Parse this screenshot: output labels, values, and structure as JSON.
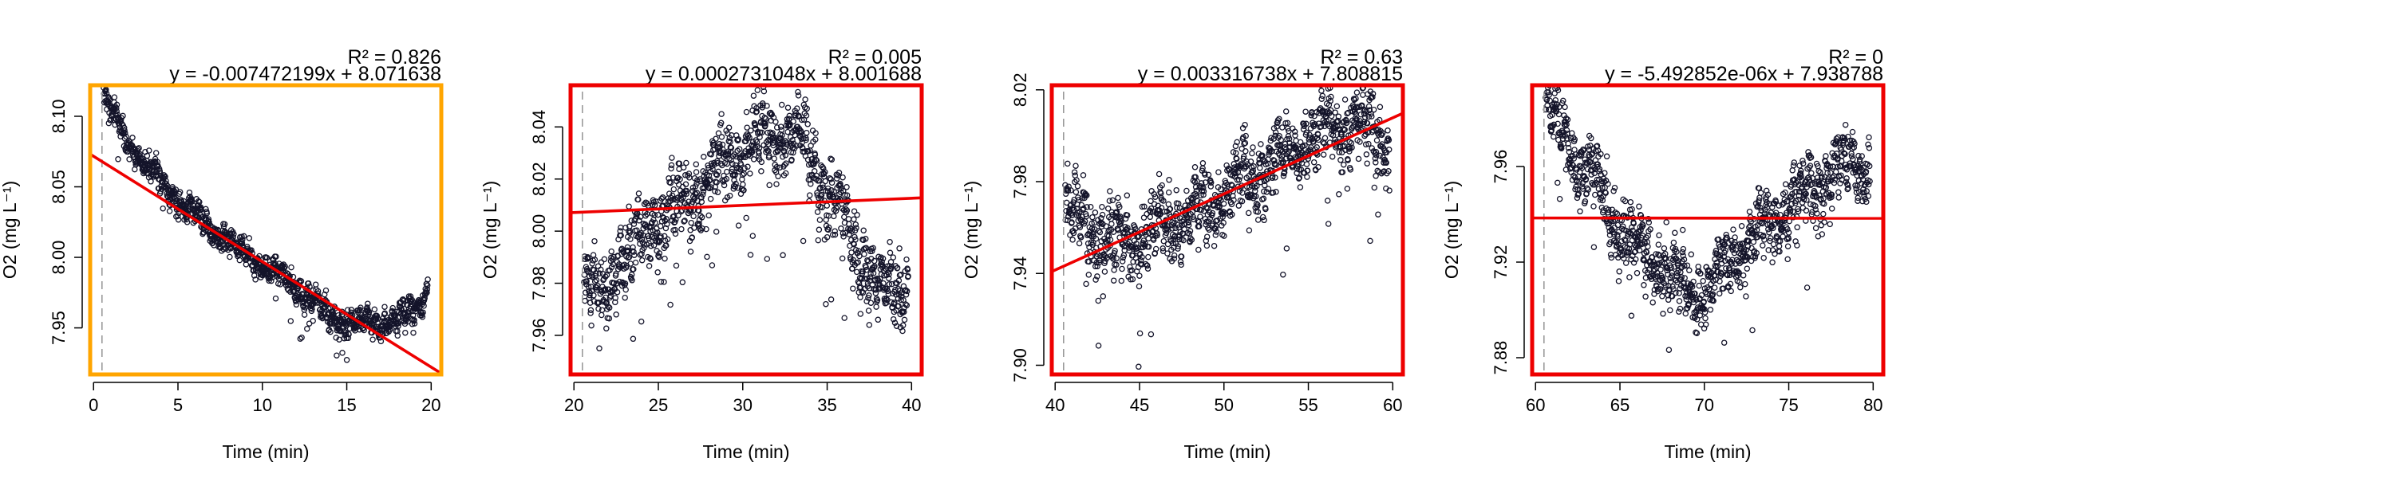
{
  "chart_data": [
    {
      "type": "scatter",
      "xlabel": "Time (min)",
      "ylabel": "O2 (mg L⁻¹)",
      "r2_label": "R² = 0.826",
      "equation": "y = -0.007472199x + 8.071638",
      "frame_color": "#FFA500",
      "xlim": [
        -0.2,
        20.6
      ],
      "ylim": [
        7.917,
        8.122
      ],
      "xticks": [
        0,
        5,
        10,
        15,
        20
      ],
      "xtick_labels": [
        "0",
        "5",
        "10",
        "15",
        "20"
      ],
      "yticks": [
        7.95,
        8.0,
        8.05,
        8.1
      ],
      "ytick_labels": [
        "7.95",
        "8.00",
        "8.05",
        "8.10"
      ],
      "vline_x": 0.5,
      "fit": {
        "slope": -0.007472199,
        "intercept": 8.071638
      },
      "trend": [
        [
          0.6,
          8.115
        ],
        [
          1.0,
          8.105
        ],
        [
          2.0,
          8.082
        ],
        [
          3.0,
          8.067
        ],
        [
          5.0,
          8.04
        ],
        [
          7.0,
          8.02
        ],
        [
          9.0,
          8.003
        ],
        [
          11.0,
          7.988
        ],
        [
          13.0,
          7.968
        ],
        [
          14.5,
          7.955
        ],
        [
          16.0,
          7.953
        ],
        [
          17.5,
          7.954
        ],
        [
          18.5,
          7.958
        ],
        [
          19.2,
          7.965
        ],
        [
          19.8,
          7.978
        ]
      ],
      "noise": 0.006,
      "n_points": 1150
    },
    {
      "type": "scatter",
      "xlabel": "Time (min)",
      "ylabel": "O2 (mg L⁻¹)",
      "r2_label": "R² = 0.005",
      "equation": "y = 0.0002731048x + 8.001688",
      "frame_color": "#EE0000",
      "xlim": [
        19.8,
        40.6
      ],
      "ylim": [
        7.945,
        8.056
      ],
      "xticks": [
        20,
        25,
        30,
        35,
        40
      ],
      "xtick_labels": [
        "20",
        "25",
        "30",
        "35",
        "40"
      ],
      "yticks": [
        7.96,
        7.98,
        8.0,
        8.02,
        8.04
      ],
      "ytick_labels": [
        "7.96",
        "7.98",
        "8.00",
        "8.02",
        "8.04"
      ],
      "vline_x": 20.5,
      "fit": {
        "slope": 0.0002731048,
        "intercept": 8.001688
      },
      "trend": [
        [
          20.6,
          7.978
        ],
        [
          21.5,
          7.975
        ],
        [
          22.5,
          7.985
        ],
        [
          24.0,
          7.998
        ],
        [
          26.0,
          8.008
        ],
        [
          28.0,
          8.02
        ],
        [
          30.0,
          8.032
        ],
        [
          32.0,
          8.038
        ],
        [
          33.5,
          8.035
        ],
        [
          35.0,
          8.015
        ],
        [
          36.0,
          8.005
        ],
        [
          37.0,
          7.99
        ],
        [
          38.0,
          7.978
        ],
        [
          39.0,
          7.978
        ],
        [
          39.8,
          7.982
        ]
      ],
      "noise": 0.009,
      "n_points": 1150
    },
    {
      "type": "scatter",
      "xlabel": "Time (min)",
      "ylabel": "O2 (mg L⁻¹)",
      "r2_label": "R² = 0.63",
      "equation": "y = 0.003316738x + 7.808815",
      "frame_color": "#EE0000",
      "xlim": [
        39.8,
        60.6
      ],
      "ylim": [
        7.896,
        8.022
      ],
      "xticks": [
        40,
        45,
        50,
        55,
        60
      ],
      "xtick_labels": [
        "40",
        "45",
        "50",
        "55",
        "60"
      ],
      "yticks": [
        7.9,
        7.94,
        7.98,
        8.02
      ],
      "ytick_labels": [
        "7.90",
        "7.94",
        "7.98",
        "8.02"
      ],
      "vline_x": 40.5,
      "fit": {
        "slope": 0.003316738,
        "intercept": 7.808815
      },
      "trend": [
        [
          40.6,
          7.968
        ],
        [
          42.0,
          7.962
        ],
        [
          43.5,
          7.952
        ],
        [
          45.0,
          7.955
        ],
        [
          47.0,
          7.962
        ],
        [
          49.0,
          7.968
        ],
        [
          51.0,
          7.98
        ],
        [
          53.0,
          7.988
        ],
        [
          55.0,
          7.998
        ],
        [
          57.0,
          8.005
        ],
        [
          58.5,
          8.004
        ],
        [
          59.8,
          7.993
        ]
      ],
      "noise": 0.01,
      "n_points": 1150
    },
    {
      "type": "scatter",
      "xlabel": "Time (min)",
      "ylabel": "O2 (mg L⁻¹)",
      "r2_label": "R² = 0",
      "equation": "y = -5.492852e-06x + 7.938788",
      "frame_color": "#EE0000",
      "xlim": [
        59.8,
        80.6
      ],
      "ylim": [
        7.873,
        7.994
      ],
      "xticks": [
        60,
        65,
        70,
        75,
        80
      ],
      "xtick_labels": [
        "60",
        "65",
        "70",
        "75",
        "80"
      ],
      "yticks": [
        7.88,
        7.92,
        7.96
      ],
      "ytick_labels": [
        "7.88",
        "7.92",
        "7.96"
      ],
      "vline_x": 60.5,
      "fit": {
        "slope": -5.492852e-06,
        "intercept": 7.938788
      },
      "trend": [
        [
          60.6,
          7.985
        ],
        [
          61.5,
          7.975
        ],
        [
          63.0,
          7.96
        ],
        [
          64.5,
          7.94
        ],
        [
          66.0,
          7.925
        ],
        [
          68.0,
          7.915
        ],
        [
          69.5,
          7.905
        ],
        [
          71.0,
          7.915
        ],
        [
          72.5,
          7.928
        ],
        [
          74.0,
          7.936
        ],
        [
          75.5,
          7.945
        ],
        [
          77.0,
          7.955
        ],
        [
          78.5,
          7.962
        ],
        [
          79.8,
          7.958
        ]
      ],
      "noise": 0.009,
      "n_points": 1150
    }
  ]
}
